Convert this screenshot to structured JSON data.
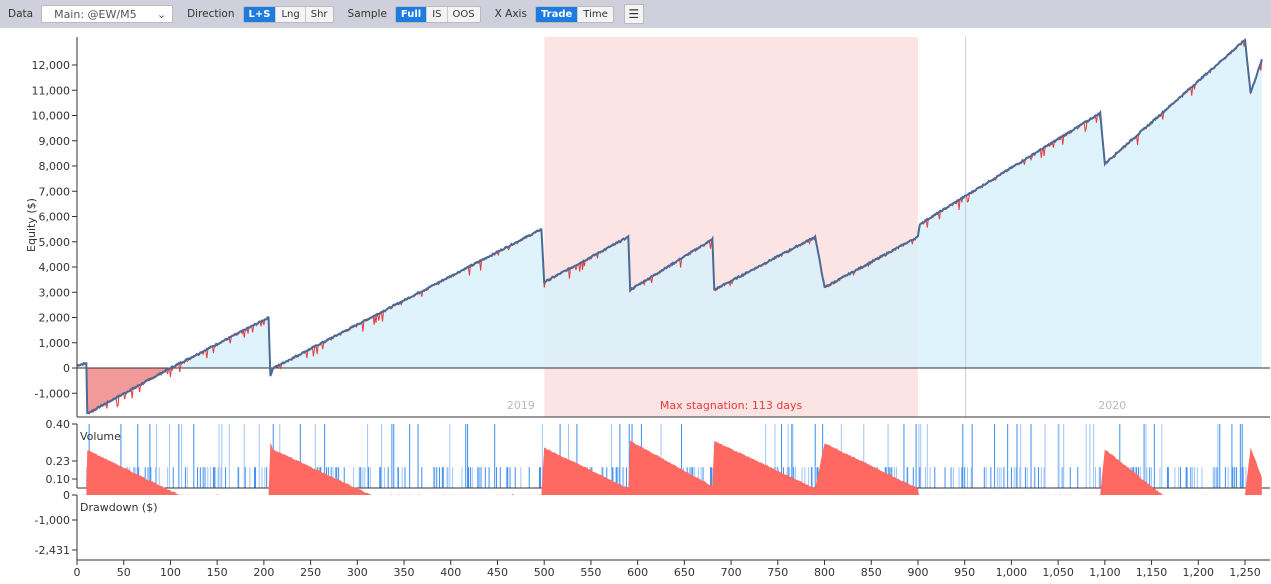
{
  "toolbar": {
    "data_label": "Data",
    "data_value": "Main: @EW/M5",
    "direction_label": "Direction",
    "direction_options": [
      "L+S",
      "Lng",
      "Shr"
    ],
    "direction_selected": "L+S",
    "sample_label": "Sample",
    "sample_options": [
      "Full",
      "IS",
      "OOS"
    ],
    "sample_selected": "Full",
    "xaxis_label": "X Axis",
    "xaxis_options": [
      "Trade",
      "Time"
    ],
    "xaxis_selected": "Trade",
    "menu_icon": "hamburger-icon"
  },
  "chart_data": [
    {
      "type": "line",
      "name": "equity",
      "ylabel": "Equity ($)",
      "ylim": [
        -1940,
        13100
      ],
      "xlim": [
        0,
        1268
      ],
      "yticks": [
        -1000,
        0,
        1000,
        2000,
        3000,
        4000,
        5000,
        6000,
        7000,
        8000,
        9000,
        10000,
        11000,
        12000
      ],
      "ytick_labels": [
        "-1,000",
        "0",
        "1,000",
        "2,000",
        "3,000",
        "4,000",
        "5,000",
        "6,000",
        "7,000",
        "8,000",
        "9,000",
        "10,000",
        "11,000",
        "12,000"
      ],
      "x": [
        0,
        10,
        11,
        100,
        205,
        207,
        210,
        497,
        500,
        590,
        592,
        680,
        682,
        790,
        800,
        900,
        902,
        1095,
        1100,
        1250,
        1256,
        1268
      ],
      "y": [
        100,
        200,
        -1800,
        0,
        2000,
        -300,
        0,
        5500,
        3400,
        5200,
        3100,
        5100,
        3100,
        5200,
        3200,
        5200,
        5700,
        10100,
        8100,
        13000,
        10900,
        12200
      ],
      "colors": {
        "line": "#4a6a96",
        "fill": "#d9f1fc",
        "negfill": "#f29a9a",
        "low": "#e83a3a",
        "stagnation": "#fde4e4"
      },
      "annotations": {
        "stagnation": {
          "from": 500,
          "to": 900,
          "label": "Max stagnation: 113 days"
        },
        "year_divider": 951,
        "years": [
          {
            "label": "2019",
            "at": 475
          },
          {
            "label": "2020",
            "at": 1108
          }
        ]
      }
    },
    {
      "type": "bar",
      "name": "volume",
      "label": "Volume",
      "yticks": [
        0.1,
        0.23,
        0.4
      ],
      "ytick_labels": [
        "0.10",
        "0.23",
        "0.40"
      ],
      "color": "#3d8ef0"
    },
    {
      "type": "area",
      "name": "drawdown",
      "label": "Drawdown ($)",
      "yticks": [
        0,
        -1000,
        -2431
      ],
      "ytick_labels": [
        "0",
        "-1,000",
        "-2,431"
      ],
      "color": "#ff6961"
    },
    {
      "xticks": [
        0,
        50,
        100,
        150,
        200,
        250,
        300,
        350,
        400,
        450,
        500,
        550,
        600,
        650,
        700,
        750,
        800,
        850,
        900,
        950,
        1000,
        1050,
        1100,
        1150,
        1200,
        1250
      ],
      "xtick_labels": [
        "0",
        "50",
        "100",
        "150",
        "200",
        "250",
        "300",
        "350",
        "400",
        "450",
        "500",
        "550",
        "600",
        "650",
        "700",
        "750",
        "800",
        "850",
        "900",
        "950",
        "1,000",
        "1,050",
        "1,100",
        "1,150",
        "1,200",
        "1,250"
      ]
    }
  ]
}
